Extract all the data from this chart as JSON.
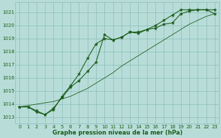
{
  "title": "Graphe pression niveau de la mer (hPa)",
  "bg_color": "#b8ddd8",
  "grid_color": "#88bbbb",
  "line_color": "#1a5c1a",
  "xlim": [
    -0.5,
    23.5
  ],
  "ylim": [
    1012.5,
    1021.8
  ],
  "xticks": [
    0,
    1,
    2,
    3,
    4,
    5,
    6,
    7,
    8,
    9,
    10,
    11,
    12,
    13,
    14,
    15,
    16,
    17,
    18,
    19,
    20,
    21,
    22,
    23
  ],
  "yticks": [
    1013,
    1014,
    1015,
    1016,
    1017,
    1018,
    1019,
    1020,
    1021
  ],
  "series1_x": [
    0,
    1,
    2,
    3,
    4,
    5,
    6,
    7,
    8,
    9,
    10,
    11,
    12,
    13,
    14,
    15,
    16,
    17,
    18,
    19,
    20,
    21,
    22,
    23
  ],
  "series1_y": [
    1013.8,
    1013.8,
    1013.4,
    1013.2,
    1013.7,
    1014.5,
    1015.3,
    1015.8,
    1016.5,
    1017.2,
    1019.3,
    1018.9,
    1019.1,
    1019.5,
    1019.5,
    1019.7,
    1019.8,
    1020.1,
    1020.2,
    1020.9,
    1021.1,
    1021.2,
    1021.2,
    1021.2
  ],
  "series2_x": [
    0,
    1,
    2,
    3,
    4,
    5,
    6,
    7,
    8,
    9,
    10,
    11,
    12,
    13,
    14,
    15,
    16,
    17,
    18,
    19,
    20,
    21,
    22,
    23
  ],
  "series2_y": [
    1013.8,
    1013.8,
    1013.5,
    1013.2,
    1013.6,
    1014.6,
    1015.4,
    1016.3,
    1017.5,
    1018.6,
    1019.0,
    1018.9,
    1019.1,
    1019.5,
    1019.4,
    1019.7,
    1020.0,
    1020.4,
    1020.8,
    1021.2,
    1021.2,
    1021.2,
    1021.2,
    1020.9
  ],
  "series3_x": [
    0,
    1,
    2,
    3,
    4,
    5,
    6,
    7,
    8,
    9,
    10,
    11,
    12,
    13,
    14,
    15,
    16,
    17,
    18,
    19,
    20,
    21,
    22,
    23
  ],
  "series3_y": [
    1013.8,
    1013.9,
    1014.0,
    1014.1,
    1014.2,
    1014.4,
    1014.6,
    1014.9,
    1015.2,
    1015.6,
    1016.0,
    1016.4,
    1016.9,
    1017.3,
    1017.7,
    1018.1,
    1018.5,
    1018.9,
    1019.3,
    1019.7,
    1020.1,
    1020.4,
    1020.7,
    1020.9
  ]
}
